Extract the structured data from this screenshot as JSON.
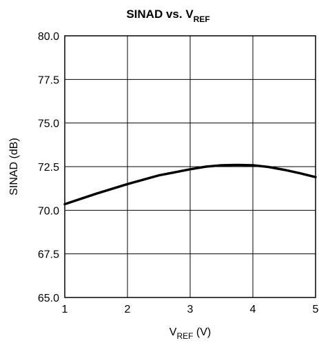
{
  "chart_data": {
    "type": "line",
    "title": {
      "main": "SINAD vs. V",
      "sub": "REF"
    },
    "xlabel": {
      "main": "V",
      "sub": "REF",
      "unit": " (V)"
    },
    "ylabel": "SINAD (dB)",
    "xlim": [
      1,
      5
    ],
    "ylim": [
      65.0,
      80.0
    ],
    "x_ticks": [
      1,
      2,
      3,
      4,
      5
    ],
    "x_tick_labels": [
      "1",
      "2",
      "3",
      "4",
      "5"
    ],
    "y_ticks": [
      65.0,
      67.5,
      70.0,
      72.5,
      75.0,
      77.5,
      80.0
    ],
    "y_tick_labels": [
      "65.0",
      "67.5",
      "70.0",
      "72.5",
      "75.0",
      "77.5",
      "80.0"
    ],
    "grid": true,
    "series": [
      {
        "x": [
          1.0,
          1.5,
          2.0,
          2.5,
          3.0,
          3.25,
          3.5,
          3.75,
          4.0,
          4.25,
          4.5,
          4.75,
          5.0
        ],
        "values": [
          70.35,
          70.95,
          71.5,
          72.0,
          72.35,
          72.5,
          72.58,
          72.6,
          72.58,
          72.48,
          72.32,
          72.12,
          71.9
        ]
      }
    ]
  }
}
